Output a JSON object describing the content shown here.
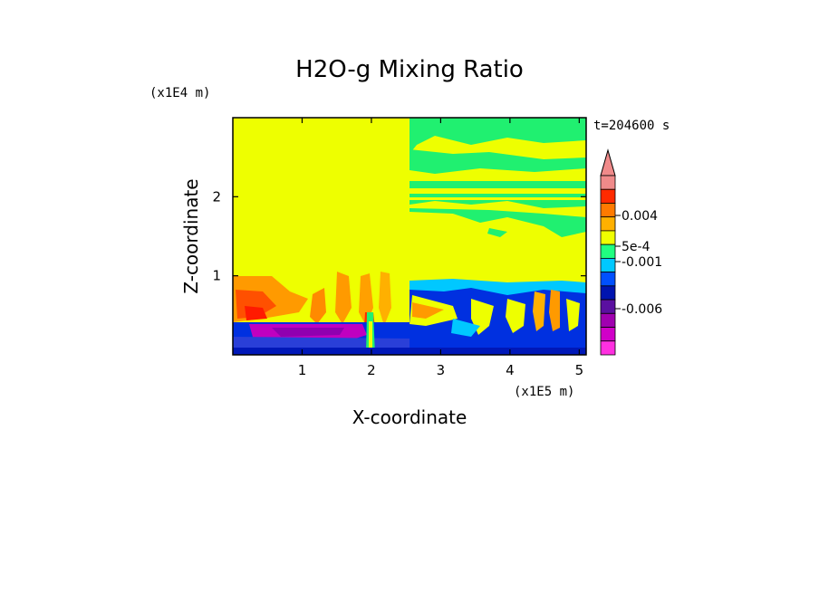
{
  "chart_data": {
    "type": "heatmap",
    "title": "H2O-g Mixing Ratio",
    "xlabel": "X-coordinate",
    "ylabel": "Z-coordinate",
    "x_scale_label": "(x1E5 m)",
    "y_scale_label": "(x1E4 m)",
    "time_label": "t=204600 s",
    "xlim": [
      0,
      5.1
    ],
    "ylim": [
      0,
      3.0
    ],
    "x_ticks": [
      "1",
      "2",
      "3",
      "4",
      "5"
    ],
    "y_ticks": [
      "1",
      "2"
    ],
    "x_tick_values": [
      1,
      2,
      3,
      4,
      5
    ],
    "y_tick_values": [
      1,
      2
    ],
    "colorbar": {
      "labels": [
        "0.004",
        "5e-4",
        "-0.001",
        "-0.006"
      ],
      "label_values": [
        0.004,
        0.0005,
        -0.001,
        -0.006
      ],
      "colors_top_to_bottom": [
        "#f08a8a",
        "#ff2a00",
        "#ff7a00",
        "#ffb000",
        "#f0ff00",
        "#20ff80",
        "#00c8ff",
        "#0050ff",
        "#0014b0",
        "#5a10a0",
        "#a000b0",
        "#d000c8",
        "#ff30e0"
      ]
    },
    "colors": {
      "background_field": "#eeff00",
      "moist": "#20f070",
      "dry_blue": "#0030e0",
      "very_dry": "#c000c0",
      "warm": "#ff6a00"
    }
  }
}
